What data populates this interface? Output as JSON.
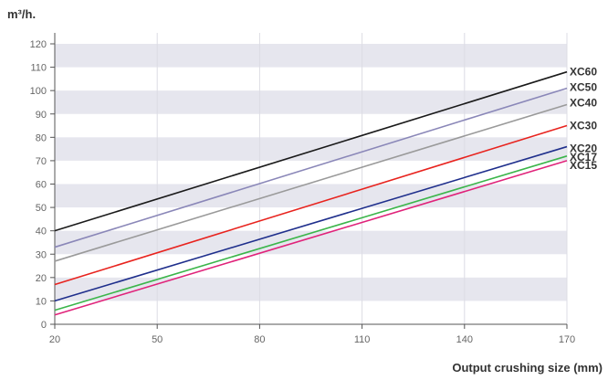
{
  "chart_data": {
    "type": "line",
    "title": "",
    "xlabel": "Output crushing size (mm)",
    "ylabel": "m³/h.",
    "xlim": [
      20,
      170
    ],
    "ylim": [
      0,
      120
    ],
    "xticks": [
      "20",
      "50",
      "80",
      "110",
      "140",
      "170"
    ],
    "yticks": [
      "0",
      "10",
      "20",
      "30",
      "40",
      "50",
      "60",
      "70",
      "80",
      "90",
      "100",
      "110",
      "120"
    ],
    "grid": "horizontal bands and vertical lines",
    "band_color": "#e6e6ee",
    "series": [
      {
        "name": "XC60",
        "color": "#1a1a1a",
        "x": [
          20,
          170
        ],
        "y": [
          40,
          108
        ]
      },
      {
        "name": "XC50",
        "color": "#8a87b8",
        "x": [
          20,
          170
        ],
        "y": [
          33,
          101
        ]
      },
      {
        "name": "XC40",
        "color": "#9a9a9a",
        "x": [
          20,
          170
        ],
        "y": [
          27,
          94
        ]
      },
      {
        "name": "XC30",
        "color": "#e8231e",
        "x": [
          20,
          170
        ],
        "y": [
          17,
          85
        ]
      },
      {
        "name": "XC20",
        "color": "#1f2f8c",
        "x": [
          20,
          170
        ],
        "y": [
          10,
          76
        ]
      },
      {
        "name": "XC17",
        "color": "#3bb54a",
        "x": [
          20,
          170
        ],
        "y": [
          6,
          72
        ]
      },
      {
        "name": "XC15",
        "color": "#e0237a",
        "x": [
          20,
          170
        ],
        "y": [
          4,
          70
        ]
      }
    ]
  }
}
